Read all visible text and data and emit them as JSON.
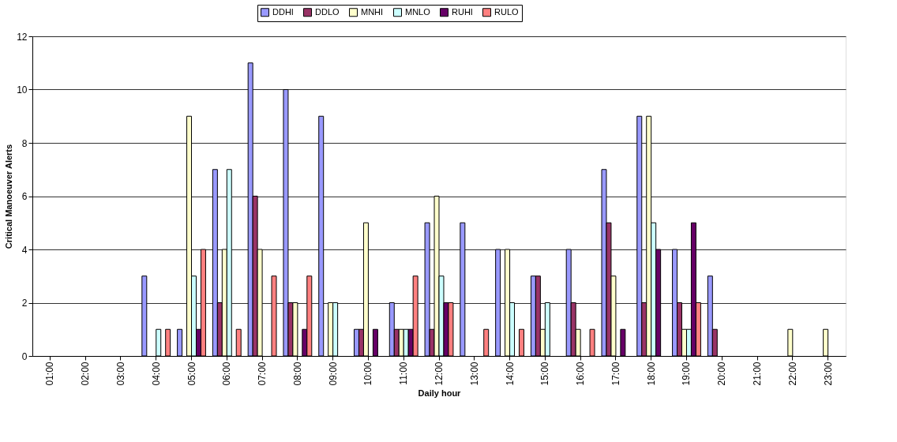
{
  "chart_data": {
    "type": "bar",
    "xlabel": "Daily hour",
    "ylabel": "Critical Manoeuver Alerts",
    "categories": [
      "01:00",
      "02:00",
      "03:00",
      "04:00",
      "05:00",
      "06:00",
      "07:00",
      "08:00",
      "09:00",
      "10:00",
      "11:00",
      "12:00",
      "13:00",
      "14:00",
      "15:00",
      "16:00",
      "17:00",
      "18:00",
      "19:00",
      "20:00",
      "21:00",
      "22:00",
      "23:00"
    ],
    "series": [
      {
        "name": "DDHI",
        "color": "#9999ff",
        "values": [
          null,
          null,
          null,
          3,
          1,
          7,
          11,
          10,
          9,
          1,
          2,
          5,
          5,
          4,
          3,
          4,
          7,
          9,
          4,
          3,
          null,
          null,
          null
        ]
      },
      {
        "name": "DDLO",
        "color": "#993366",
        "values": [
          null,
          null,
          null,
          null,
          null,
          2,
          6,
          2,
          null,
          1,
          1,
          1,
          null,
          null,
          3,
          2,
          5,
          2,
          2,
          1,
          null,
          null,
          null
        ]
      },
      {
        "name": "MNHI",
        "color": "#ffffcc",
        "values": [
          null,
          null,
          null,
          null,
          9,
          4,
          4,
          2,
          2,
          5,
          1,
          6,
          null,
          4,
          1,
          1,
          3,
          9,
          1,
          null,
          null,
          1,
          1
        ]
      },
      {
        "name": "MNLO",
        "color": "#ccffff",
        "values": [
          null,
          null,
          null,
          1,
          3,
          7,
          null,
          null,
          2,
          null,
          1,
          3,
          null,
          2,
          2,
          null,
          null,
          5,
          1,
          null,
          null,
          null,
          null
        ]
      },
      {
        "name": "RUHI",
        "color": "#660066",
        "values": [
          null,
          null,
          null,
          null,
          1,
          null,
          null,
          1,
          null,
          1,
          1,
          2,
          null,
          null,
          null,
          null,
          1,
          4,
          5,
          null,
          null,
          null,
          null
        ]
      },
      {
        "name": "RULO",
        "color": "#ff8080",
        "values": [
          null,
          null,
          null,
          1,
          4,
          1,
          3,
          3,
          null,
          null,
          3,
          2,
          1,
          1,
          null,
          1,
          null,
          null,
          2,
          null,
          null,
          null,
          null
        ]
      }
    ],
    "ylim": [
      0,
      12
    ],
    "yticks": [
      0,
      2,
      4,
      6,
      8,
      10,
      12
    ],
    "grid": "y",
    "legend": "top"
  }
}
